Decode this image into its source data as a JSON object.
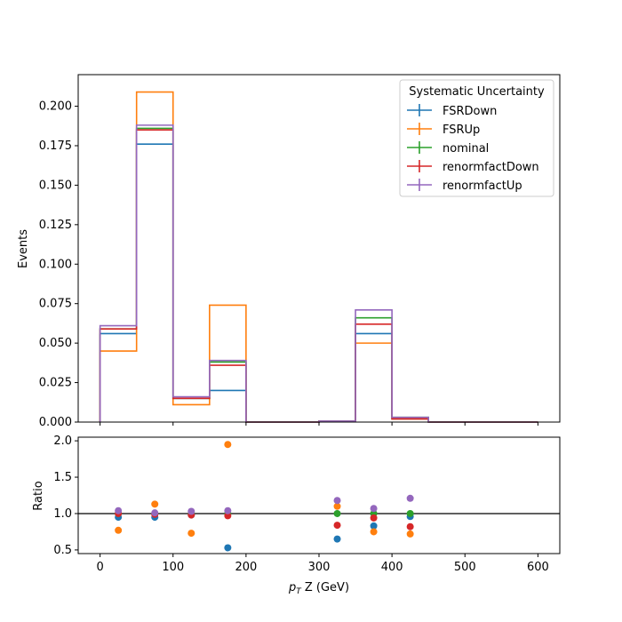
{
  "chart_data": [
    {
      "type": "step",
      "xlabel": "",
      "ylabel": "Events",
      "xlim": [
        -30,
        630
      ],
      "ylim": [
        0,
        0.22
      ],
      "yticks": [
        "0.000",
        "0.025",
        "0.050",
        "0.075",
        "0.100",
        "0.125",
        "0.150",
        "0.175",
        "0.200"
      ],
      "bin_edges": [
        0,
        50,
        100,
        150,
        200,
        250,
        300,
        350,
        400,
        450,
        500,
        550,
        600
      ],
      "legend": {
        "title": "Systematic Uncertainty",
        "placement": "top-right"
      },
      "series": [
        {
          "name": "FSRDown",
          "color": "#1f77b4",
          "values": [
            0.056,
            0.176,
            0.015,
            0.02,
            0.0,
            0.0,
            0.0005,
            0.056,
            0.002,
            0.0,
            0.0,
            0.0
          ]
        },
        {
          "name": "FSRUp",
          "color": "#ff7f0e",
          "values": [
            0.045,
            0.209,
            0.011,
            0.074,
            0.0,
            0.0,
            0.0005,
            0.05,
            0.002,
            0.0,
            0.0,
            0.0
          ]
        },
        {
          "name": "nominal",
          "color": "#2ca02c",
          "values": [
            0.059,
            0.186,
            0.015,
            0.038,
            0.0,
            0.0,
            0.0005,
            0.066,
            0.003,
            0.0,
            0.0,
            0.0
          ]
        },
        {
          "name": "renormfactDown",
          "color": "#d62728",
          "values": [
            0.059,
            0.185,
            0.015,
            0.036,
            0.0,
            0.0,
            0.0005,
            0.062,
            0.002,
            0.0,
            0.0,
            0.0
          ]
        },
        {
          "name": "renormfactUp",
          "color": "#9467bd",
          "values": [
            0.061,
            0.188,
            0.016,
            0.039,
            0.0,
            0.0,
            0.0006,
            0.071,
            0.003,
            0.0,
            0.0,
            0.0
          ]
        }
      ]
    },
    {
      "type": "scatter",
      "xlabel": "p_T Z (GeV)",
      "xlabel_main": "p",
      "xlabel_sub": "T",
      "xlabel_rest": " Z (GeV)",
      "ylabel": "Ratio",
      "xlim": [
        -30,
        630
      ],
      "ylim": [
        0.45,
        2.05
      ],
      "xticks": [
        "0",
        "100",
        "200",
        "300",
        "400",
        "500",
        "600"
      ],
      "yticks": [
        "0.5",
        "1.0",
        "1.5",
        "2.0"
      ],
      "reference_line": 1.0,
      "x": [
        25,
        75,
        125,
        175,
        325,
        375,
        425
      ],
      "series": [
        {
          "name": "FSRDown",
          "color": "#1f77b4",
          "values": [
            0.95,
            0.95,
            0.98,
            0.53,
            0.65,
            0.83,
            0.96
          ]
        },
        {
          "name": "FSRUp",
          "color": "#ff7f0e",
          "values": [
            0.77,
            1.13,
            0.73,
            1.95,
            1.1,
            0.75,
            0.72
          ]
        },
        {
          "name": "nominal",
          "color": "#2ca02c",
          "values": [
            1.0,
            1.0,
            1.0,
            1.0,
            1.0,
            1.0,
            1.0
          ]
        },
        {
          "name": "renormfactDown",
          "color": "#d62728",
          "values": [
            1.0,
            0.99,
            0.98,
            0.97,
            0.84,
            0.94,
            0.82
          ]
        },
        {
          "name": "renormfactUp",
          "color": "#9467bd",
          "values": [
            1.04,
            1.01,
            1.03,
            1.04,
            1.18,
            1.07,
            1.21
          ]
        }
      ]
    }
  ]
}
